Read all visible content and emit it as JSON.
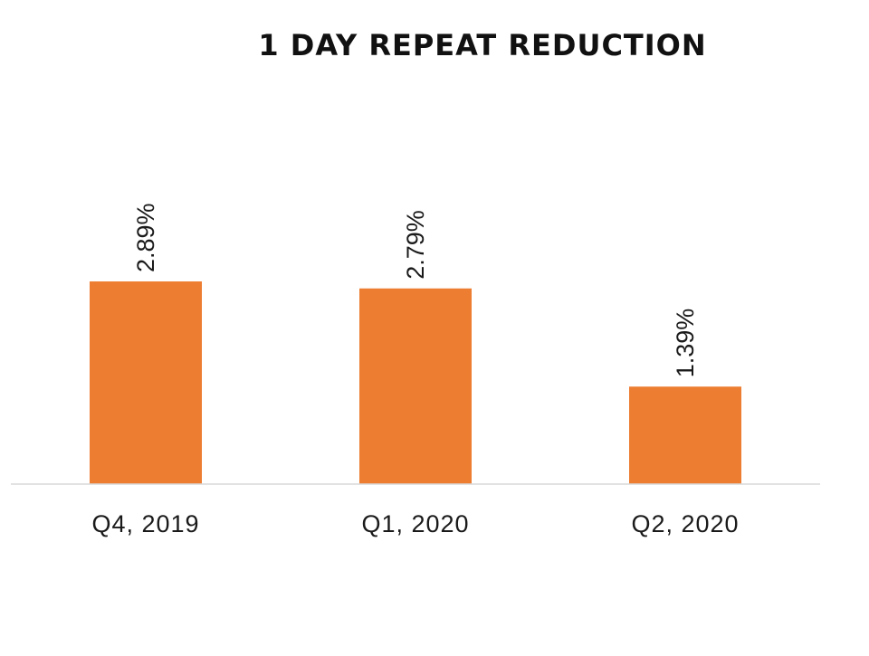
{
  "chart_data": {
    "type": "bar",
    "title": "1 DAY REPEAT REDUCTION",
    "categories": [
      "Q4, 2019",
      "Q1, 2020",
      "Q2, 2020"
    ],
    "values": [
      2.89,
      2.79,
      1.39
    ],
    "data_labels": [
      "2.89%",
      "2.79%",
      "1.39%"
    ],
    "xlabel": "",
    "ylabel": "",
    "ylim": [
      0,
      5
    ],
    "grid": false,
    "legend": "none",
    "bar_color": "#ED7D31",
    "axis_color": "#D9D9D9"
  }
}
